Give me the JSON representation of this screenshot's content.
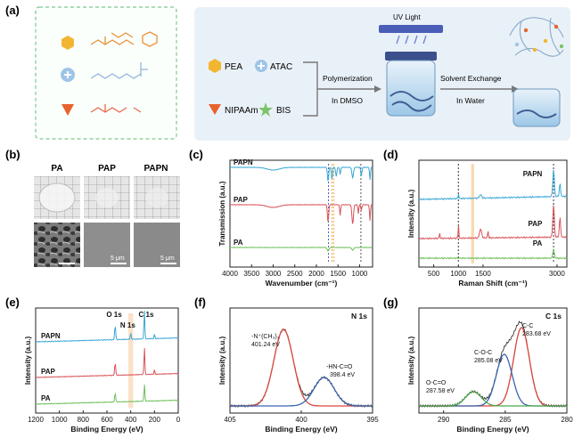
{
  "panels": {
    "a": {
      "label": "(a)",
      "legend": [
        {
          "name": "PEA",
          "shape": "hexagon",
          "color": "#f2b632"
        },
        {
          "name": "ATAC",
          "shape": "plus-circle",
          "color": "#9ec5e8"
        },
        {
          "name": "NIPAAm",
          "shape": "triangle",
          "color": "#e8622c"
        },
        {
          "name": "BIS",
          "shape": "star",
          "color": "#7ac56a"
        }
      ],
      "uv_light": "UV Light",
      "step1": "Polymerization",
      "step1_sub": "In DMSO",
      "step2": "Solvent Exchange",
      "step2_sub": "In Water"
    },
    "b": {
      "label": "(b)",
      "columns": [
        "PA",
        "PAP",
        "PAPN"
      ],
      "scale_bar": "5 μm"
    },
    "c": {
      "label": "(c)"
    },
    "d": {
      "label": "(d)"
    },
    "e": {
      "label": "(e)"
    },
    "f": {
      "label": "(f)"
    },
    "g": {
      "label": "(g)"
    }
  },
  "chart_data": [
    {
      "id": "c",
      "type": "line",
      "xlabel": "Wavenumber (cm⁻¹)",
      "ylabel": "Transmission (a.u.)",
      "xlim": [
        4000,
        700
      ],
      "xticks": [
        "4000",
        "3500",
        "3000",
        "2500",
        "2000",
        "1500",
        "1000"
      ],
      "series": [
        {
          "name": "PAPN",
          "color": "#3aa7d6"
        },
        {
          "name": "PAP",
          "color": "#d9535a"
        },
        {
          "name": "PA",
          "color": "#6cbf5a"
        }
      ]
    },
    {
      "id": "d",
      "type": "line",
      "xlabel": "Raman Shift (cm⁻¹)",
      "ylabel": "Intensity (a.u.)",
      "xlim": [
        200,
        3200
      ],
      "xticks": [
        "500",
        "1000",
        "1500",
        "3000"
      ],
      "series": [
        {
          "name": "PAPN",
          "color": "#3aa7d6"
        },
        {
          "name": "PAP",
          "color": "#d9535a"
        },
        {
          "name": "PA",
          "color": "#6cbf5a"
        }
      ]
    },
    {
      "id": "e",
      "type": "line",
      "xlabel": "Binding Energy (eV)",
      "ylabel": "Intensity (a.u.)",
      "xlim": [
        1200,
        0
      ],
      "xticks": [
        "1200",
        "1000",
        "800",
        "600",
        "400",
        "200",
        "0"
      ],
      "peaks": [
        "O 1s",
        "N 1s",
        "C 1s"
      ],
      "series": [
        {
          "name": "PAPN",
          "color": "#3aa7d6"
        },
        {
          "name": "PAP",
          "color": "#d9535a"
        },
        {
          "name": "PA",
          "color": "#6cbf5a"
        }
      ]
    },
    {
      "id": "f",
      "type": "line",
      "xlabel": "Binding Energy (eV)",
      "ylabel": "Intensity (a.u.)",
      "xlim": [
        405,
        395
      ],
      "xticks": [
        "405",
        "400",
        "395"
      ],
      "title": "N 1s",
      "annotations": [
        {
          "label": "-N⁺(CH₃)₃",
          "value": "401.24 eV"
        },
        {
          "label": "-HN-C=O",
          "value": "398.4 eV"
        }
      ]
    },
    {
      "id": "g",
      "type": "line",
      "xlabel": "Binding Energy (eV)",
      "ylabel": "Intensity (a.u.)",
      "xlim": [
        292,
        280
      ],
      "xticks": [
        "290",
        "285",
        "280"
      ],
      "title": "C 1s",
      "annotations": [
        {
          "label": "C-C",
          "value": "283.68 eV"
        },
        {
          "label": "C-O-C",
          "value": "285.08 eV"
        },
        {
          "label": "O-C=O",
          "value": "287.58 eV"
        }
      ]
    }
  ]
}
